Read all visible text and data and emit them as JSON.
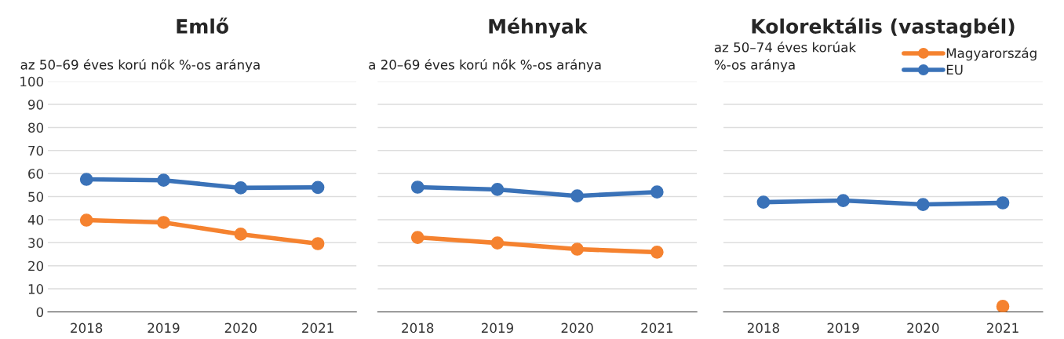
{
  "chart_data": [
    {
      "type": "line",
      "title": "Emlő",
      "subtitle": "az 50–69 éves korú nők %-os aránya",
      "categories": [
        "2018",
        "2019",
        "2020",
        "2021"
      ],
      "ylim": [
        0,
        100
      ],
      "yticks": [
        0,
        10,
        20,
        30,
        40,
        50,
        60,
        70,
        80,
        90,
        100
      ],
      "grid": "y",
      "marker": "circle",
      "series": [
        {
          "color": "#f5822f",
          "values": [
            39.8,
            38.8,
            33.7,
            29.6
          ]
        },
        {
          "color": "#3a72b8",
          "values": [
            57.5,
            57.1,
            53.8,
            54.0
          ]
        }
      ]
    },
    {
      "type": "line",
      "title": "Méhnyak",
      "subtitle": "a 20–69 éves korú nők %-os aránya",
      "categories": [
        "2018",
        "2019",
        "2020",
        "2021"
      ],
      "ylim": [
        0,
        100
      ],
      "yticks": [
        0,
        10,
        20,
        30,
        40,
        50,
        60,
        70,
        80,
        90,
        100
      ],
      "tick_labels": "x",
      "grid": "y",
      "marker": "circle",
      "series": [
        {
          "color": "#f5822f",
          "values": [
            32.3,
            29.9,
            27.2,
            25.9
          ]
        },
        {
          "color": "#3a72b8",
          "values": [
            54.1,
            53.1,
            50.3,
            52.0
          ]
        }
      ]
    },
    {
      "type": "line",
      "title": "Kolorektális (vastagbél)",
      "subtitle": "az 50–74 éves korúak\n%-os aránya",
      "categories": [
        "2018",
        "2019",
        "2020",
        "2021"
      ],
      "ylim": [
        0,
        100
      ],
      "yticks": [
        0,
        10,
        20,
        30,
        40,
        50,
        60,
        70,
        80,
        90,
        100
      ],
      "tick_labels": "x",
      "grid": "y",
      "marker": "circle",
      "legend": "top right",
      "series": [
        {
          "name": "Magyarország",
          "color": "#f5822f",
          "values": [
            null,
            null,
            null,
            2.4
          ]
        },
        {
          "name": "EU",
          "color": "#3a72b8",
          "values": [
            47.6,
            48.3,
            46.6,
            47.3
          ]
        }
      ]
    }
  ]
}
